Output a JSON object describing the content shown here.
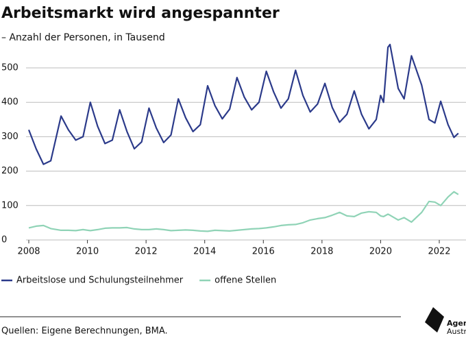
{
  "chart_data": {
    "type": "line",
    "title": "Arbeitsmarkt wird angespannter",
    "subtitle": "– Anzahl der Personen, in Tausend",
    "source": "Quellen: Eigene Berechnungen, BMA.",
    "logo": [
      "Agenda",
      "Austria"
    ],
    "xlim": [
      2008,
      2022
    ],
    "xticks": [
      2008,
      2010,
      2012,
      2014,
      2016,
      2018,
      2020,
      2022
    ],
    "ylim": [
      0,
      500
    ],
    "yticks": [
      0,
      100,
      200,
      300,
      400,
      500
    ],
    "grid": true,
    "legend": "bottom",
    "x": [
      2008.0,
      2008.25,
      2008.5,
      2008.75,
      2009.1,
      2009.35,
      2009.6,
      2009.85,
      2010.1,
      2010.35,
      2010.6,
      2010.85,
      2011.1,
      2011.35,
      2011.6,
      2011.85,
      2012.1,
      2012.35,
      2012.6,
      2012.85,
      2013.1,
      2013.35,
      2013.6,
      2013.85,
      2014.1,
      2014.35,
      2014.6,
      2014.85,
      2015.1,
      2015.35,
      2015.6,
      2015.85,
      2016.1,
      2016.35,
      2016.6,
      2016.85,
      2017.1,
      2017.35,
      2017.6,
      2017.85,
      2018.1,
      2018.35,
      2018.6,
      2018.85,
      2019.1,
      2019.35,
      2019.6,
      2019.85,
      2020.0,
      2020.1,
      2020.25,
      2020.32,
      2020.6,
      2020.8,
      2021.05,
      2021.4,
      2021.65,
      2021.85,
      2022.05,
      2022.3,
      2022.5,
      2022.65
    ],
    "series": [
      {
        "name": "Arbeitslose und Schulungsteilnehmer",
        "color": "#2b3a8a",
        "values": [
          320,
          265,
          220,
          230,
          360,
          320,
          290,
          300,
          400,
          330,
          280,
          290,
          378,
          315,
          265,
          285,
          383,
          325,
          283,
          305,
          410,
          355,
          315,
          335,
          448,
          390,
          352,
          380,
          472,
          415,
          378,
          400,
          490,
          430,
          383,
          410,
          493,
          420,
          372,
          395,
          455,
          385,
          342,
          365,
          433,
          365,
          323,
          350,
          420,
          400,
          560,
          568,
          440,
          410,
          535,
          450,
          350,
          340,
          403,
          335,
          298,
          310
        ]
      },
      {
        "name": "offene Stellen",
        "color": "#8fd3b6",
        "values": [
          35,
          40,
          42,
          33,
          28,
          28,
          27,
          30,
          27,
          30,
          34,
          35,
          35,
          36,
          32,
          30,
          30,
          32,
          30,
          27,
          28,
          29,
          28,
          26,
          25,
          28,
          27,
          26,
          28,
          30,
          32,
          33,
          35,
          38,
          42,
          44,
          45,
          50,
          58,
          62,
          65,
          72,
          80,
          70,
          68,
          78,
          82,
          80,
          70,
          68,
          75,
          72,
          58,
          65,
          52,
          80,
          112,
          110,
          100,
          125,
          140,
          132
        ]
      }
    ]
  }
}
